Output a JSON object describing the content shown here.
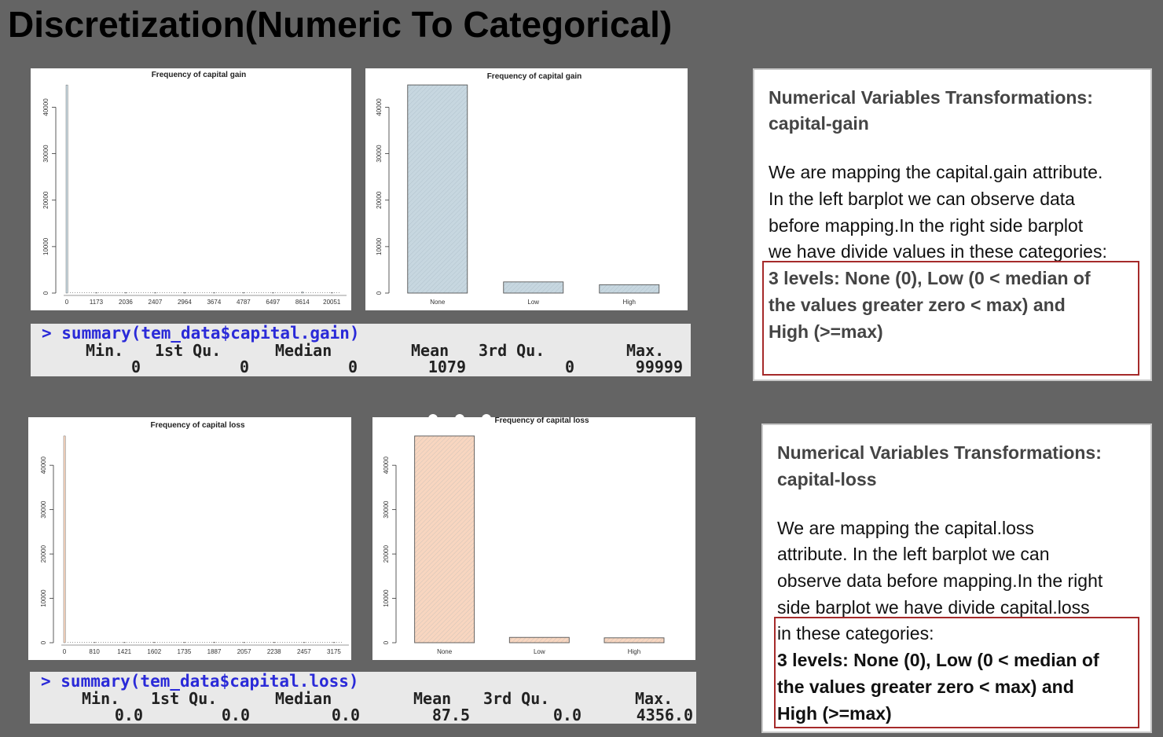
{
  "slide": {
    "title": "Discretization(Numeric To Categorical)"
  },
  "chart_data": [
    {
      "id": "gain_raw",
      "type": "bar",
      "title": "Frequency of capital gain",
      "categories": [
        "0",
        "1173",
        "2036",
        "2407",
        "2964",
        "3674",
        "4787",
        "6497",
        "8614",
        "20051"
      ],
      "values": [
        44800,
        30,
        20,
        20,
        40,
        25,
        60,
        30,
        250,
        90
      ],
      "yticks": [
        0,
        10000,
        20000,
        30000,
        40000
      ],
      "ylim": [
        0,
        46000
      ],
      "color": "#c7d7e0"
    },
    {
      "id": "gain_cat",
      "type": "bar",
      "title": "Frequency of capital gain",
      "categories": [
        "None",
        "Low",
        "High"
      ],
      "values": [
        44800,
        2400,
        1800
      ],
      "yticks": [
        0,
        10000,
        20000,
        30000,
        40000
      ],
      "ylim": [
        0,
        46000
      ],
      "color": "#c7d7e0"
    },
    {
      "id": "loss_raw",
      "type": "bar",
      "title": "Frequency of capital loss",
      "categories": [
        "0",
        "810",
        "1421",
        "1602",
        "1735",
        "1887",
        "2057",
        "2238",
        "2457",
        "3175"
      ],
      "values": [
        46600,
        20,
        20,
        40,
        30,
        150,
        40,
        30,
        20,
        20
      ],
      "yticks": [
        0,
        10000,
        20000,
        30000,
        40000
      ],
      "ylim": [
        0,
        48000
      ],
      "color": "#f8d6c0"
    },
    {
      "id": "loss_cat",
      "type": "bar",
      "title": "Frequency of capital loss",
      "categories": [
        "None",
        "Low",
        "High"
      ],
      "values": [
        46600,
        1200,
        1100
      ],
      "yticks": [
        0,
        10000,
        20000,
        30000,
        40000
      ],
      "ylim": [
        0,
        48000
      ],
      "color": "#f8d6c0"
    }
  ],
  "gain_summary": {
    "command": "> summary(tem_data$capital.gain)",
    "headers": [
      "Min.",
      "1st Qu.",
      "Median",
      "Mean",
      "3rd Qu.",
      "Max."
    ],
    "values": [
      "0",
      "0",
      "0",
      "1079",
      "0",
      "99999"
    ]
  },
  "loss_summary": {
    "command": "> summary(tem_data$capital.loss)",
    "headers": [
      "Min.",
      "1st Qu.",
      "Median",
      "Mean",
      "3rd Qu.",
      "Max."
    ],
    "values": [
      "0.0",
      "0.0",
      "0.0",
      "87.5",
      "0.0",
      "4356.0"
    ]
  },
  "gain_panel": {
    "title_line1": "Numerical Variables Transformations:",
    "title_line2": "capital-gain",
    "body": [
      "We are mapping the capital.gain attribute.",
      "In the left barplot we can observe data",
      "before mapping.In the right side barplot",
      "we have divide values in these categories:"
    ],
    "levels": [
      "3 levels: None (0), Low (0 < median of",
      "the values greater zero < max) and",
      "High (>=max)"
    ]
  },
  "loss_panel": {
    "title_line1": "Numerical Variables Transformations:",
    "title_line2": "capital-loss",
    "body": [
      "We are mapping the capital.loss",
      "attribute. In the left barplot we can",
      "observe data before mapping.In the right",
      "side barplot we have divide capital.loss",
      "in these categories:"
    ],
    "levels": [
      "3 levels: None (0), Low (0 < median of",
      "the values greater zero < max) and",
      "High (>=max)"
    ]
  }
}
